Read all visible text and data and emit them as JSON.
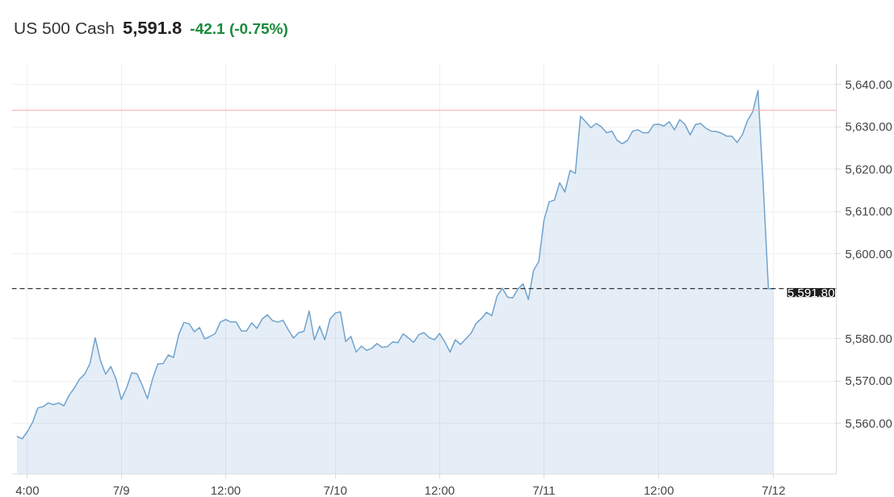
{
  "chart_data": {
    "type": "area",
    "title": "US 500 Cash",
    "annotations": [
      "5,591.8",
      "-42.1 (-0.75%)"
    ],
    "categories": [
      null,
      null,
      "4:00",
      null,
      null,
      null,
      null,
      null,
      null,
      null,
      null,
      null,
      null,
      null,
      null,
      null,
      null,
      null,
      null,
      null,
      "7/9",
      null,
      null,
      null,
      null,
      null,
      null,
      null,
      null,
      null,
      null,
      null,
      null,
      null,
      null,
      null,
      null,
      null,
      null,
      null,
      "12:00",
      null,
      null,
      null,
      null,
      null,
      null,
      null,
      null,
      null,
      null,
      null,
      null,
      null,
      null,
      null,
      null,
      null,
      null,
      null,
      null,
      "7/10",
      null,
      null,
      null,
      null,
      null,
      null,
      null,
      null,
      null,
      null,
      null,
      null,
      null,
      null,
      null,
      null,
      null,
      null,
      null,
      "12:00",
      null,
      null,
      null,
      null,
      null,
      null,
      null,
      null,
      null,
      null,
      null,
      null,
      null,
      null,
      null,
      null,
      null,
      null,
      null,
      "7/11",
      null,
      null,
      null,
      null,
      null,
      null,
      null,
      null,
      null,
      null,
      null,
      null,
      null,
      null,
      null,
      null,
      null,
      null,
      null,
      null,
      null,
      "12:00",
      null,
      null,
      null,
      null,
      null,
      null,
      null,
      null,
      null,
      null,
      null,
      null,
      null,
      null,
      null,
      null,
      null,
      null,
      null,
      null,
      null,
      "7/12"
    ],
    "series": [
      {
        "color": "#6fa3cf",
        "values": [
          5556.9,
          5556.3,
          5558.0,
          5560.2,
          5563.6,
          5563.9,
          5564.8,
          5564.4,
          5564.8,
          5564.1,
          5566.6,
          5568.3,
          5570.4,
          5571.6,
          5574.1,
          5580.2,
          5574.8,
          5571.6,
          5573.4,
          5570.4,
          5565.6,
          5568.3,
          5571.9,
          5571.7,
          5569.0,
          5565.8,
          5570.5,
          5574.0,
          5574.1,
          5576.1,
          5575.5,
          5580.9,
          5583.8,
          5583.5,
          5581.6,
          5582.6,
          5579.9,
          5580.5,
          5581.2,
          5583.9,
          5584.5,
          5583.9,
          5583.9,
          5581.8,
          5581.8,
          5583.7,
          5582.4,
          5584.6,
          5585.6,
          5584.2,
          5583.9,
          5584.3,
          5582.1,
          5580.1,
          5581.4,
          5581.7,
          5586.5,
          5579.7,
          5582.9,
          5579.7,
          5584.6,
          5586.0,
          5586.3,
          5579.3,
          5580.5,
          5576.8,
          5578.2,
          5577.2,
          5577.7,
          5578.8,
          5577.9,
          5578.1,
          5579.2,
          5579.0,
          5581.1,
          5580.2,
          5579.1,
          5580.9,
          5581.4,
          5580.2,
          5579.7,
          5581.2,
          5579.2,
          5576.8,
          5579.7,
          5578.6,
          5579.9,
          5581.2,
          5583.6,
          5584.7,
          5586.2,
          5585.4,
          5590.0,
          5591.9,
          5589.8,
          5589.6,
          5591.7,
          5592.9,
          5589.2,
          5596.1,
          5598.2,
          5608.0,
          5612.3,
          5612.7,
          5616.8,
          5614.6,
          5619.7,
          5619.0,
          5632.5,
          5631.2,
          5629.8,
          5630.8,
          5630.0,
          5628.6,
          5629.0,
          5626.8,
          5626.0,
          5626.8,
          5629.0,
          5629.3,
          5628.6,
          5628.6,
          5630.5,
          5630.6,
          5630.2,
          5631.2,
          5629.3,
          5631.7,
          5630.6,
          5628.1,
          5630.5,
          5630.8,
          5629.7,
          5629.0,
          5628.9,
          5628.5,
          5627.8,
          5627.8,
          5626.3,
          5628.1,
          5631.5,
          5633.6,
          5638.6,
          5616.3,
          5591.8,
          5591.8
        ]
      }
    ],
    "ylim": [
      5548,
      5645
    ],
    "yticks": [
      {
        "value": 5560,
        "label": "5,560.00"
      },
      {
        "value": 5570,
        "label": "5,570.00"
      },
      {
        "value": 5580,
        "label": "5,580.00"
      },
      {
        "value": 5600,
        "label": "5,600.00"
      },
      {
        "value": 5610,
        "label": "5,610.00"
      },
      {
        "value": 5620,
        "label": "5,620.00"
      },
      {
        "value": 5630,
        "label": "5,630.00"
      },
      {
        "value": 5640,
        "label": "5,640.00"
      }
    ],
    "ref_lines": [
      {
        "axis": "y",
        "value": 5633.9,
        "color": "#f4a6a6",
        "line_style": "solid"
      },
      {
        "axis": "y",
        "value": 5591.8,
        "label": "5,591.80",
        "color": "#333333",
        "line_style": "dashed"
      }
    ],
    "grid": true
  }
}
